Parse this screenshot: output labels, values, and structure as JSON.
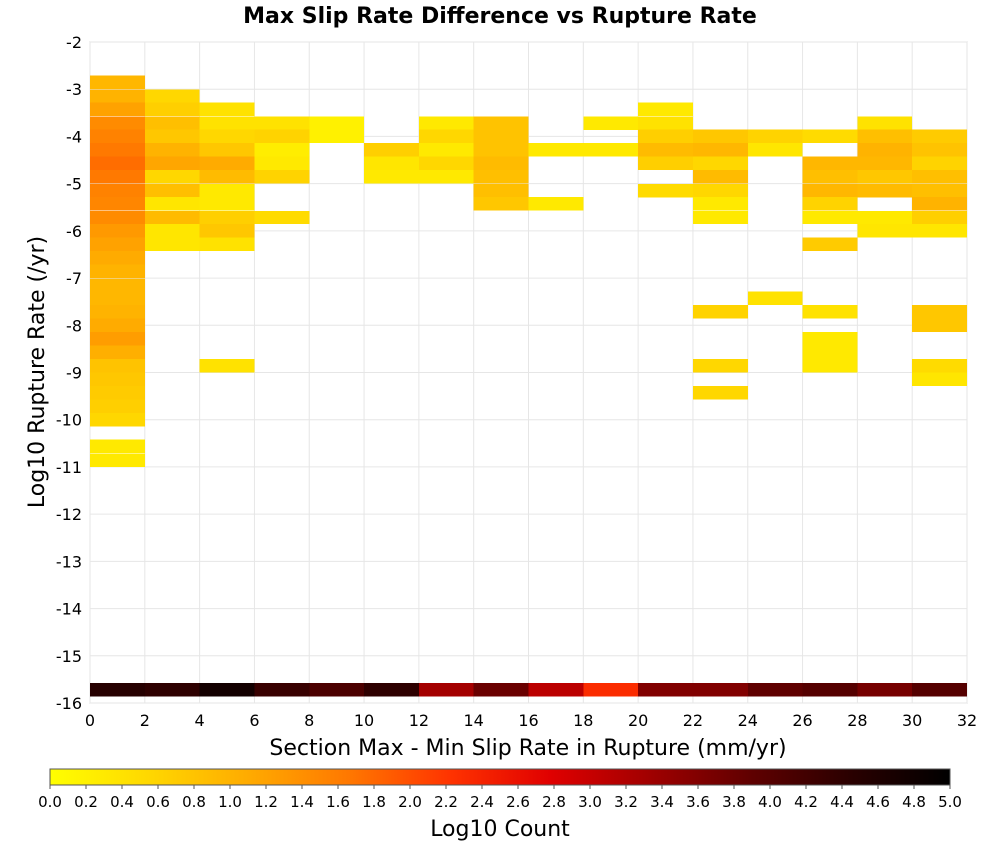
{
  "chart_data": {
    "type": "heatmap",
    "title": "Max Slip Rate Difference vs Rupture Rate",
    "xlabel": "Section Max - Min Slip Rate in Rupture (mm/yr)",
    "ylabel": "Log10 Rupture Rate (/yr)",
    "xlim": [
      0,
      32
    ],
    "ylim": [
      -16,
      -2
    ],
    "x_bin_width": 2,
    "y_bin_height": 0.2857,
    "x_ticks": [
      0,
      2,
      4,
      6,
      8,
      10,
      12,
      14,
      16,
      18,
      20,
      22,
      24,
      26,
      28,
      30,
      32
    ],
    "y_ticks": [
      -2,
      -3,
      -4,
      -5,
      -6,
      -7,
      -8,
      -9,
      -10,
      -11,
      -12,
      -13,
      -14,
      -15,
      -16
    ],
    "grid": true,
    "colorbar": {
      "label": "Log10 Count",
      "range": [
        0,
        5
      ],
      "ticks": [
        "0.0",
        "0.2",
        "0.4",
        "0.6",
        "0.8",
        "1.0",
        "1.2",
        "1.4",
        "1.6",
        "1.8",
        "2.0",
        "2.2",
        "2.4",
        "2.6",
        "2.8",
        "3.0",
        "3.2",
        "3.4",
        "3.6",
        "3.8",
        "4.0",
        "4.2",
        "4.4",
        "4.6",
        "4.8",
        "5.0"
      ],
      "colors": [
        "#ffff00",
        "#ffd700",
        "#ffaa00",
        "#ff7700",
        "#ff3300",
        "#e00000",
        "#a00000",
        "#600000",
        "#2a0000",
        "#000000"
      ]
    },
    "cells": [
      {
        "x": 0,
        "y": -3.0,
        "v": 0.95
      },
      {
        "x": 0,
        "y": -3.29,
        "v": 1.0
      },
      {
        "x": 0,
        "y": -3.57,
        "v": 1.2
      },
      {
        "x": 0,
        "y": -3.86,
        "v": 1.45
      },
      {
        "x": 0,
        "y": -4.14,
        "v": 1.55
      },
      {
        "x": 0,
        "y": -4.43,
        "v": 1.65
      },
      {
        "x": 0,
        "y": -4.71,
        "v": 1.75
      },
      {
        "x": 0,
        "y": -5.0,
        "v": 1.65
      },
      {
        "x": 0,
        "y": -5.29,
        "v": 1.55
      },
      {
        "x": 0,
        "y": -5.57,
        "v": 1.5
      },
      {
        "x": 0,
        "y": -5.86,
        "v": 1.45
      },
      {
        "x": 0,
        "y": -6.14,
        "v": 1.3
      },
      {
        "x": 0,
        "y": -6.43,
        "v": 1.2
      },
      {
        "x": 0,
        "y": -6.71,
        "v": 1.1
      },
      {
        "x": 0,
        "y": -7.0,
        "v": 1.0
      },
      {
        "x": 0,
        "y": -7.29,
        "v": 0.95
      },
      {
        "x": 0,
        "y": -7.57,
        "v": 0.95
      },
      {
        "x": 0,
        "y": -7.86,
        "v": 1.0
      },
      {
        "x": 0,
        "y": -8.14,
        "v": 1.1
      },
      {
        "x": 0,
        "y": -8.43,
        "v": 1.25
      },
      {
        "x": 0,
        "y": -8.71,
        "v": 1.05
      },
      {
        "x": 0,
        "y": -9.0,
        "v": 0.8
      },
      {
        "x": 0,
        "y": -9.29,
        "v": 0.75
      },
      {
        "x": 0,
        "y": -9.57,
        "v": 0.7
      },
      {
        "x": 0,
        "y": -9.86,
        "v": 0.65
      },
      {
        "x": 0,
        "y": -10.14,
        "v": 0.55
      },
      {
        "x": 0,
        "y": -10.71,
        "v": 0.3
      },
      {
        "x": 0,
        "y": -11.0,
        "v": 0.3
      },
      {
        "x": 2,
        "y": -3.29,
        "v": 0.55
      },
      {
        "x": 2,
        "y": -3.57,
        "v": 0.65
      },
      {
        "x": 2,
        "y": -3.86,
        "v": 0.85
      },
      {
        "x": 2,
        "y": -4.14,
        "v": 0.75
      },
      {
        "x": 2,
        "y": -4.43,
        "v": 1.0
      },
      {
        "x": 2,
        "y": -4.71,
        "v": 1.15
      },
      {
        "x": 2,
        "y": -5.0,
        "v": 0.55
      },
      {
        "x": 2,
        "y": -5.29,
        "v": 0.85
      },
      {
        "x": 2,
        "y": -5.57,
        "v": 0.35
      },
      {
        "x": 2,
        "y": -5.86,
        "v": 0.9
      },
      {
        "x": 2,
        "y": -6.14,
        "v": 0.35
      },
      {
        "x": 2,
        "y": -6.43,
        "v": 0.35
      },
      {
        "x": 4,
        "y": -3.57,
        "v": 0.4
      },
      {
        "x": 4,
        "y": -3.86,
        "v": 0.4
      },
      {
        "x": 4,
        "y": -4.14,
        "v": 0.55
      },
      {
        "x": 4,
        "y": -4.43,
        "v": 0.75
      },
      {
        "x": 4,
        "y": -4.71,
        "v": 1.1
      },
      {
        "x": 4,
        "y": -5.0,
        "v": 0.9
      },
      {
        "x": 4,
        "y": -5.29,
        "v": 0.3
      },
      {
        "x": 4,
        "y": -5.57,
        "v": 0.3
      },
      {
        "x": 4,
        "y": -5.86,
        "v": 0.65
      },
      {
        "x": 4,
        "y": -6.14,
        "v": 0.75
      },
      {
        "x": 4,
        "y": -6.43,
        "v": 0.4
      },
      {
        "x": 4,
        "y": -9.0,
        "v": 0.4
      },
      {
        "x": 6,
        "y": -3.86,
        "v": 0.4
      },
      {
        "x": 6,
        "y": -4.14,
        "v": 0.6
      },
      {
        "x": 6,
        "y": -4.43,
        "v": 0.25
      },
      {
        "x": 6,
        "y": -4.71,
        "v": 0.3
      },
      {
        "x": 6,
        "y": -5.0,
        "v": 0.6
      },
      {
        "x": 6,
        "y": -5.86,
        "v": 0.5
      },
      {
        "x": 8,
        "y": -3.86,
        "v": 0.2
      },
      {
        "x": 8,
        "y": -4.14,
        "v": 0.2
      },
      {
        "x": 10,
        "y": -4.43,
        "v": 0.65
      },
      {
        "x": 10,
        "y": -4.71,
        "v": 0.35
      },
      {
        "x": 10,
        "y": -5.0,
        "v": 0.3
      },
      {
        "x": 12,
        "y": -3.86,
        "v": 0.3
      },
      {
        "x": 12,
        "y": -4.14,
        "v": 0.55
      },
      {
        "x": 12,
        "y": -4.43,
        "v": 0.3
      },
      {
        "x": 12,
        "y": -4.71,
        "v": 0.55
      },
      {
        "x": 12,
        "y": -5.0,
        "v": 0.3
      },
      {
        "x": 14,
        "y": -3.86,
        "v": 0.8
      },
      {
        "x": 14,
        "y": -4.14,
        "v": 0.8
      },
      {
        "x": 14,
        "y": -4.43,
        "v": 0.8
      },
      {
        "x": 14,
        "y": -4.71,
        "v": 0.9
      },
      {
        "x": 14,
        "y": -5.0,
        "v": 0.85
      },
      {
        "x": 14,
        "y": -5.29,
        "v": 0.85
      },
      {
        "x": 14,
        "y": -5.57,
        "v": 0.75
      },
      {
        "x": 16,
        "y": -4.43,
        "v": 0.3
      },
      {
        "x": 16,
        "y": -5.57,
        "v": 0.3
      },
      {
        "x": 18,
        "y": -3.86,
        "v": 0.3
      },
      {
        "x": 18,
        "y": -4.43,
        "v": 0.3
      },
      {
        "x": 20,
        "y": -3.57,
        "v": 0.3
      },
      {
        "x": 20,
        "y": -3.86,
        "v": 0.4
      },
      {
        "x": 20,
        "y": -4.14,
        "v": 0.65
      },
      {
        "x": 20,
        "y": -4.43,
        "v": 0.9
      },
      {
        "x": 20,
        "y": -4.71,
        "v": 0.65
      },
      {
        "x": 20,
        "y": -5.29,
        "v": 0.5
      },
      {
        "x": 22,
        "y": -4.14,
        "v": 0.75
      },
      {
        "x": 22,
        "y": -4.43,
        "v": 0.95
      },
      {
        "x": 22,
        "y": -4.71,
        "v": 0.55
      },
      {
        "x": 22,
        "y": -5.0,
        "v": 0.9
      },
      {
        "x": 22,
        "y": -5.29,
        "v": 0.55
      },
      {
        "x": 22,
        "y": -5.57,
        "v": 0.3
      },
      {
        "x": 22,
        "y": -5.86,
        "v": 0.3
      },
      {
        "x": 22,
        "y": -7.86,
        "v": 0.6
      },
      {
        "x": 22,
        "y": -9.0,
        "v": 0.55
      },
      {
        "x": 22,
        "y": -9.57,
        "v": 0.55
      },
      {
        "x": 24,
        "y": -4.14,
        "v": 0.6
      },
      {
        "x": 24,
        "y": -4.43,
        "v": 0.35
      },
      {
        "x": 24,
        "y": -7.57,
        "v": 0.4
      },
      {
        "x": 26,
        "y": -4.14,
        "v": 0.5
      },
      {
        "x": 26,
        "y": -4.71,
        "v": 0.95
      },
      {
        "x": 26,
        "y": -5.0,
        "v": 0.85
      },
      {
        "x": 26,
        "y": -5.29,
        "v": 0.95
      },
      {
        "x": 26,
        "y": -5.57,
        "v": 0.6
      },
      {
        "x": 26,
        "y": -5.86,
        "v": 0.3
      },
      {
        "x": 26,
        "y": -6.43,
        "v": 0.7
      },
      {
        "x": 26,
        "y": -7.86,
        "v": 0.4
      },
      {
        "x": 26,
        "y": -8.43,
        "v": 0.3
      },
      {
        "x": 26,
        "y": -8.71,
        "v": 0.3
      },
      {
        "x": 26,
        "y": -9.0,
        "v": 0.3
      },
      {
        "x": 28,
        "y": -3.86,
        "v": 0.4
      },
      {
        "x": 28,
        "y": -4.14,
        "v": 0.85
      },
      {
        "x": 28,
        "y": -4.43,
        "v": 1.0
      },
      {
        "x": 28,
        "y": -4.71,
        "v": 0.95
      },
      {
        "x": 28,
        "y": -5.0,
        "v": 0.75
      },
      {
        "x": 28,
        "y": -5.29,
        "v": 0.9
      },
      {
        "x": 28,
        "y": -5.86,
        "v": 0.3
      },
      {
        "x": 28,
        "y": -6.14,
        "v": 0.35
      },
      {
        "x": 30,
        "y": -4.14,
        "v": 0.7
      },
      {
        "x": 30,
        "y": -4.43,
        "v": 0.8
      },
      {
        "x": 30,
        "y": -4.71,
        "v": 0.6
      },
      {
        "x": 30,
        "y": -5.0,
        "v": 0.85
      },
      {
        "x": 30,
        "y": -5.29,
        "v": 0.85
      },
      {
        "x": 30,
        "y": -5.57,
        "v": 1.0
      },
      {
        "x": 30,
        "y": -5.86,
        "v": 0.65
      },
      {
        "x": 30,
        "y": -6.14,
        "v": 0.35
      },
      {
        "x": 30,
        "y": -7.86,
        "v": 0.75
      },
      {
        "x": 30,
        "y": -8.14,
        "v": 0.75
      },
      {
        "x": 30,
        "y": -9.0,
        "v": 0.5
      },
      {
        "x": 30,
        "y": -9.29,
        "v": 0.35
      },
      {
        "x": 0,
        "y": -15.86,
        "v": 4.5
      },
      {
        "x": 2,
        "y": -15.86,
        "v": 4.4
      },
      {
        "x": 4,
        "y": -15.86,
        "v": 4.75
      },
      {
        "x": 6,
        "y": -15.86,
        "v": 4.3
      },
      {
        "x": 8,
        "y": -15.86,
        "v": 4.1
      },
      {
        "x": 10,
        "y": -15.86,
        "v": 4.4
      },
      {
        "x": 12,
        "y": -15.86,
        "v": 3.3
      },
      {
        "x": 14,
        "y": -15.86,
        "v": 3.8
      },
      {
        "x": 16,
        "y": -15.86,
        "v": 3.1
      },
      {
        "x": 18,
        "y": -15.86,
        "v": 2.3
      },
      {
        "x": 20,
        "y": -15.86,
        "v": 3.6
      },
      {
        "x": 22,
        "y": -15.86,
        "v": 3.6
      },
      {
        "x": 24,
        "y": -15.86,
        "v": 3.9
      },
      {
        "x": 26,
        "y": -15.86,
        "v": 4.0
      },
      {
        "x": 28,
        "y": -15.86,
        "v": 3.7
      },
      {
        "x": 30,
        "y": -15.86,
        "v": 4.0
      }
    ]
  }
}
